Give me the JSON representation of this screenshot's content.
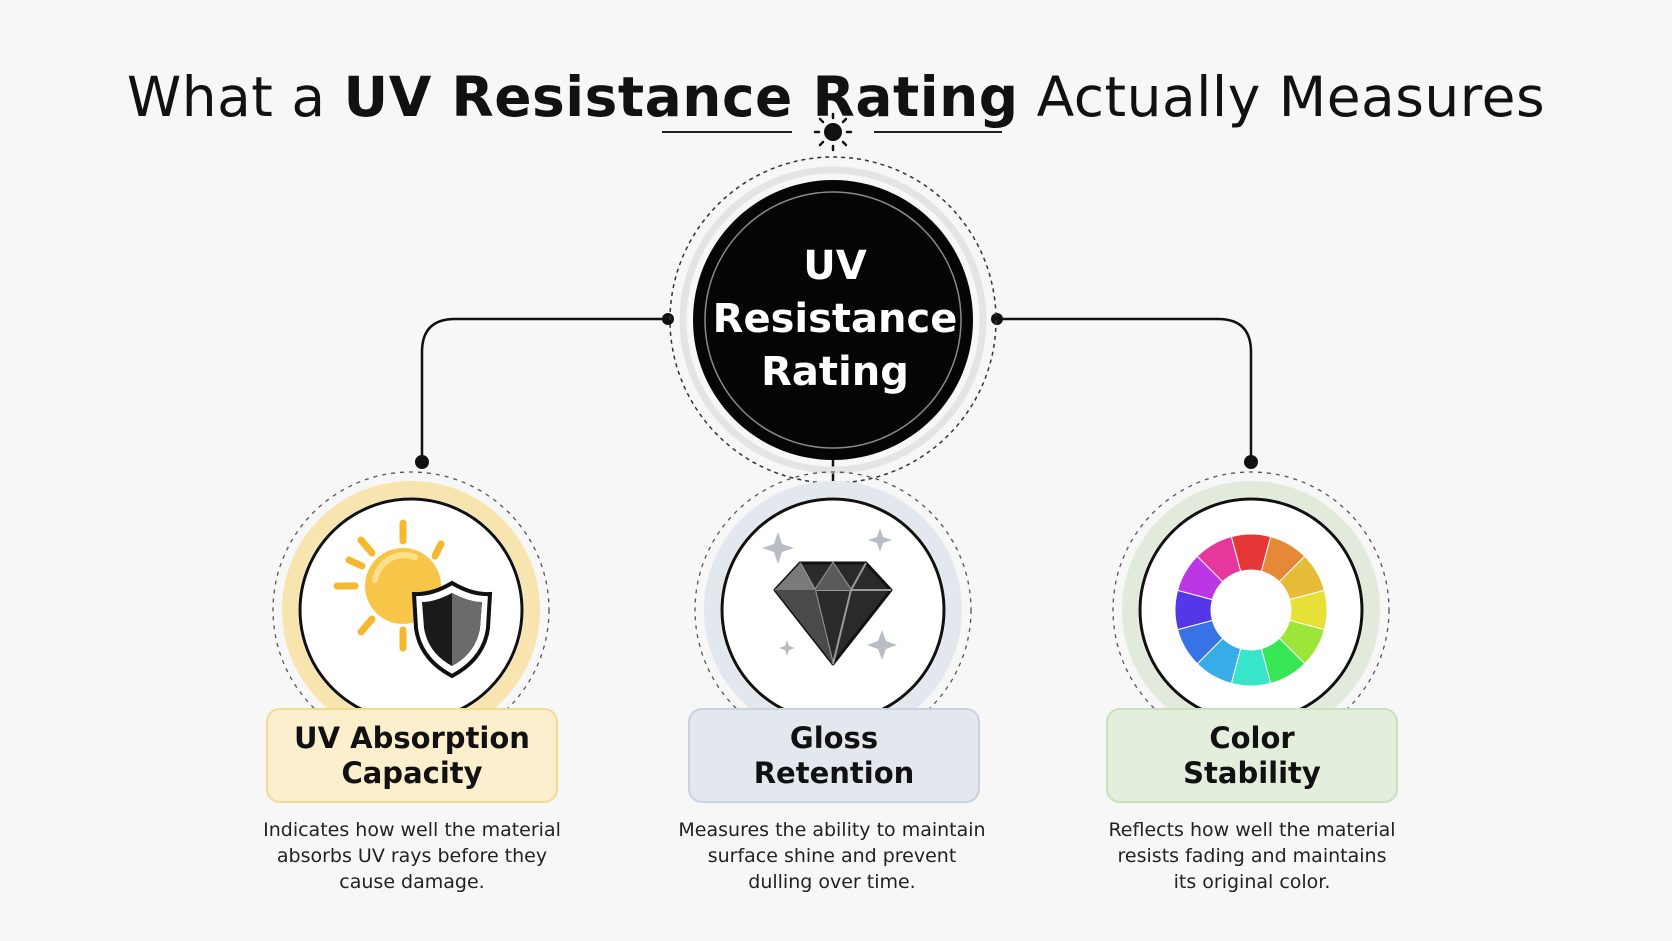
{
  "title": {
    "prefix": "What a ",
    "bold": "UV Resistance Rating",
    "suffix": " Actually Measures"
  },
  "center": {
    "lines": [
      "UV",
      "Resistance",
      "Rating"
    ]
  },
  "items": [
    {
      "label_lines": [
        "UV Absorption",
        "Capacity"
      ],
      "description_lines": [
        "Indicates how well the material",
        "absorbs UV rays before they",
        "cause damage."
      ],
      "icon": "sun-shield-icon",
      "accent": "#f5c04a"
    },
    {
      "label_lines": [
        "Gloss",
        "Retention"
      ],
      "description_lines": [
        "Measures the ability to maintain",
        "surface shine and prevent",
        "dulling over time."
      ],
      "icon": "diamond-icon",
      "accent": "#c9d2de"
    },
    {
      "label_lines": [
        "Color",
        "Stability"
      ],
      "description_lines": [
        "Reflects how well the material",
        "resists fading and maintains",
        "its original color."
      ],
      "icon": "color-wheel-icon",
      "accent": "#a8cc8f"
    }
  ]
}
